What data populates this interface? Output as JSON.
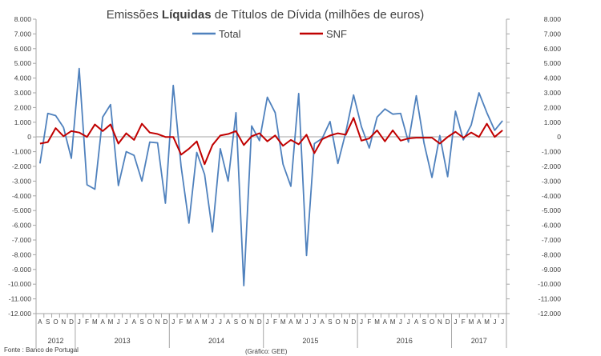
{
  "chart_data": {
    "type": "line",
    "title_prefix": "Emissões ",
    "title_strong": "Líquidas",
    "title_suffix": " de Títulos de Dívida (milhões de euros)",
    "source": "Fonte : Banco de Portugal",
    "credit": "(Gráfico: GEE)",
    "y_ticks": [
      8000,
      7000,
      6000,
      5000,
      4000,
      3000,
      2000,
      1000,
      0,
      -1000,
      -2000,
      -3000,
      -4000,
      -5000,
      -6000,
      -7000,
      -8000,
      -9000,
      -10000,
      -11000,
      -12000
    ],
    "y_tick_labels_left": [
      "8.000",
      "7.000",
      "6.000",
      "5.000",
      "4.000",
      "3.000",
      "2.000",
      "1.000",
      "0",
      "-1.000",
      "-2.000",
      "-3.000",
      "-4.000",
      "-5.000",
      "-6.000",
      "-7.000",
      "-8.000",
      "-9.000",
      "-10.000",
      "-11.000",
      "-12.000"
    ],
    "y_tick_labels_right": [
      "8.000",
      "7.000",
      "6.000",
      "5.000",
      "4.000",
      "3.000",
      "2.000",
      "1.000",
      "0",
      "-1.000",
      "-2.000",
      "-3.000",
      "-4.000",
      "-5.000",
      "-6.000",
      "-7.000",
      "-8.000",
      "-9.000",
      "-10.000",
      "-11.000",
      "-12.000"
    ],
    "ylim": [
      -12000,
      8000
    ],
    "months": [
      "A",
      "S",
      "O",
      "N",
      "D",
      "J",
      "F",
      "M",
      "A",
      "M",
      "J",
      "J",
      "A",
      "S",
      "O",
      "N",
      "D",
      "J",
      "F",
      "M",
      "A",
      "M",
      "J",
      "J",
      "A",
      "S",
      "O",
      "N",
      "D",
      "J",
      "F",
      "M",
      "A",
      "M",
      "J",
      "J",
      "A",
      "S",
      "O",
      "N",
      "D",
      "J",
      "F",
      "M",
      "A",
      "M",
      "J",
      "J",
      "A",
      "S",
      "O",
      "N",
      "D",
      "J",
      "F",
      "M",
      "A",
      "M",
      "J",
      "J"
    ],
    "years": [
      {
        "label": "2012",
        "start": 0,
        "end": 4
      },
      {
        "label": "2013",
        "start": 5,
        "end": 16
      },
      {
        "label": "2014",
        "start": 17,
        "end": 28
      },
      {
        "label": "2015",
        "start": 29,
        "end": 40
      },
      {
        "label": "2016",
        "start": 41,
        "end": 52
      },
      {
        "label": "2017",
        "start": 53,
        "end": 59
      }
    ],
    "grid": false,
    "legend_position": "top-center",
    "series": [
      {
        "name": "Total",
        "color": "#4f81bd",
        "values": [
          -1800,
          1600,
          1450,
          650,
          -1450,
          4650,
          -3250,
          -3550,
          1350,
          2200,
          -3300,
          -1000,
          -1250,
          -3000,
          -350,
          -400,
          -4500,
          3500,
          -2000,
          -5850,
          -1050,
          -2550,
          -6450,
          -800,
          -3000,
          1650,
          -10100,
          750,
          -250,
          2700,
          1650,
          -1850,
          -3350,
          2950,
          -8050,
          -450,
          -100,
          1050,
          -1800,
          300,
          2850,
          700,
          -750,
          1350,
          1900,
          1550,
          1600,
          -350,
          2800,
          -450,
          -2750,
          100,
          -2700,
          1750,
          -200,
          800,
          3000,
          1650,
          450,
          1100
        ]
      },
      {
        "name": "SNF",
        "color": "#c00000",
        "values": [
          -450,
          -350,
          600,
          50,
          400,
          300,
          0,
          850,
          400,
          850,
          -450,
          250,
          -200,
          900,
          300,
          200,
          0,
          0,
          -1200,
          -800,
          -300,
          -1850,
          -550,
          100,
          200,
          400,
          -550,
          50,
          250,
          -300,
          100,
          -600,
          -200,
          -500,
          150,
          -1100,
          -150,
          100,
          250,
          150,
          1300,
          -250,
          -100,
          450,
          -300,
          450,
          -250,
          -100,
          -50,
          -50,
          -50,
          -450,
          0,
          350,
          -50,
          300,
          0,
          900,
          0,
          450
        ]
      }
    ]
  }
}
